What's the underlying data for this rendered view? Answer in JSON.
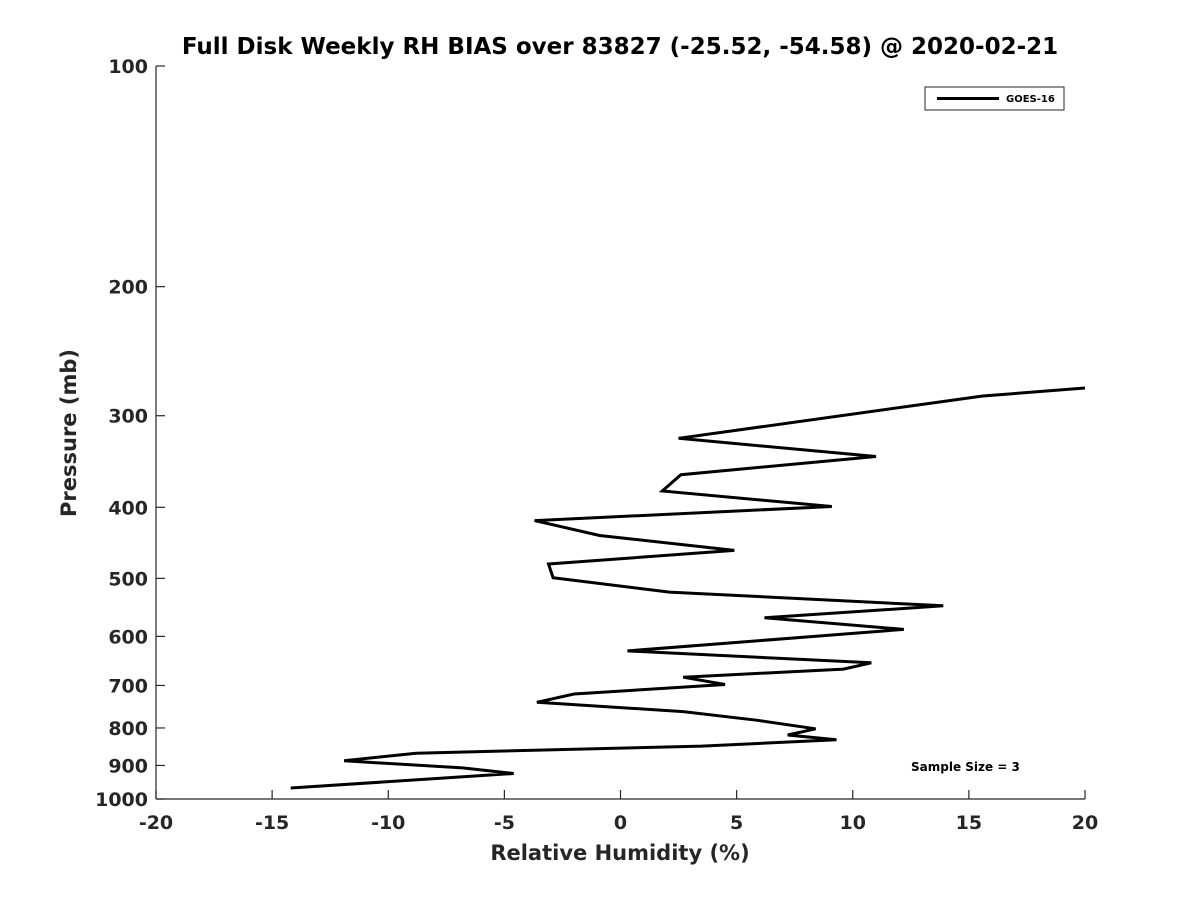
{
  "chart_data": {
    "type": "line",
    "title": "Full Disk Weekly RH BIAS over 83827 (-25.52, -54.58) @ 2020-02-21",
    "xlabel": "Relative Humidity (%)",
    "ylabel": "Pressure (mb)",
    "xlim": [
      -20,
      20
    ],
    "ylim": [
      100,
      1000
    ],
    "yscale": "log",
    "y_reversed": true,
    "grid": false,
    "legend_position": "top-right",
    "x_ticks": [
      -20,
      -15,
      -10,
      -5,
      0,
      5,
      10,
      15,
      20
    ],
    "y_ticks": [
      100,
      200,
      300,
      400,
      500,
      600,
      700,
      800,
      900,
      1000
    ],
    "annotation": "Sample Size = 3",
    "series": [
      {
        "name": "GOES-16",
        "color": "#000000",
        "points": [
          {
            "x": 20.0,
            "y": 275
          },
          {
            "x": 15.6,
            "y": 282
          },
          {
            "x": 2.5,
            "y": 322
          },
          {
            "x": 11.0,
            "y": 341
          },
          {
            "x": 2.6,
            "y": 361
          },
          {
            "x": 1.8,
            "y": 380
          },
          {
            "x": 9.1,
            "y": 399
          },
          {
            "x": -3.7,
            "y": 417
          },
          {
            "x": -0.9,
            "y": 437
          },
          {
            "x": 4.9,
            "y": 458
          },
          {
            "x": -3.1,
            "y": 478
          },
          {
            "x": -2.9,
            "y": 499
          },
          {
            "x": 2.1,
            "y": 522
          },
          {
            "x": 13.9,
            "y": 545
          },
          {
            "x": 6.2,
            "y": 566
          },
          {
            "x": 12.2,
            "y": 587
          },
          {
            "x": 0.3,
            "y": 628
          },
          {
            "x": 10.8,
            "y": 652
          },
          {
            "x": 9.6,
            "y": 665
          },
          {
            "x": 2.7,
            "y": 682
          },
          {
            "x": 4.5,
            "y": 698
          },
          {
            "x": -2.0,
            "y": 719
          },
          {
            "x": -3.6,
            "y": 738
          },
          {
            "x": 2.7,
            "y": 760
          },
          {
            "x": 5.9,
            "y": 781
          },
          {
            "x": 8.4,
            "y": 802
          },
          {
            "x": 7.2,
            "y": 818
          },
          {
            "x": 9.3,
            "y": 830
          },
          {
            "x": 3.5,
            "y": 847
          },
          {
            "x": -8.8,
            "y": 866
          },
          {
            "x": -11.9,
            "y": 887
          },
          {
            "x": -6.8,
            "y": 907
          },
          {
            "x": -4.6,
            "y": 923
          },
          {
            "x": -14.2,
            "y": 966
          }
        ]
      }
    ]
  }
}
